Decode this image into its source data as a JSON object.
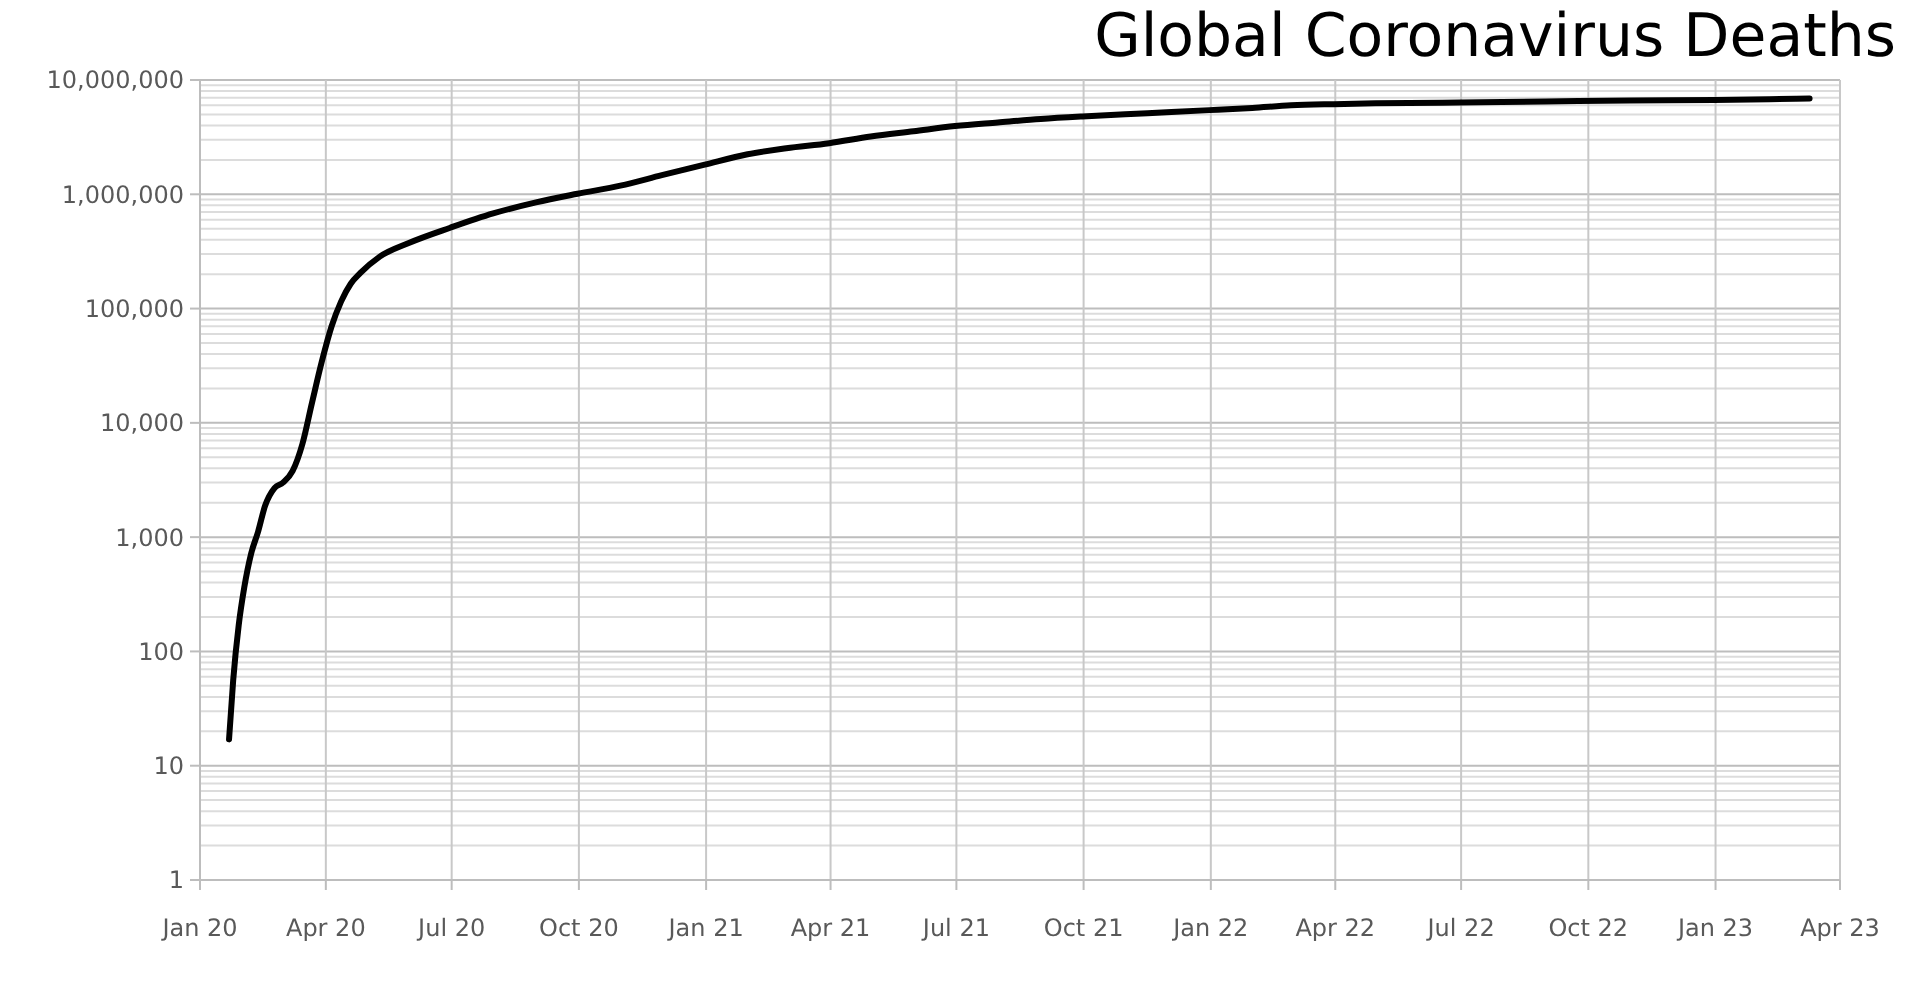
{
  "chart_data": {
    "type": "line",
    "title": "Global Coronavirus Deaths",
    "log": "y",
    "grid": true,
    "line_style": "solid",
    "xlim": [
      "2020-01-01",
      "2023-04-01"
    ],
    "xticks": [
      {
        "value": "2020-01-01",
        "label": "Jan 20"
      },
      {
        "value": "2020-04-01",
        "label": "Apr 20"
      },
      {
        "value": "2020-07-01",
        "label": "Jul 20"
      },
      {
        "value": "2020-10-01",
        "label": "Oct 20"
      },
      {
        "value": "2021-01-01",
        "label": "Jan 21"
      },
      {
        "value": "2021-04-01",
        "label": "Apr 21"
      },
      {
        "value": "2021-07-01",
        "label": "Jul 21"
      },
      {
        "value": "2021-10-01",
        "label": "Oct 21"
      },
      {
        "value": "2022-01-01",
        "label": "Jan 22"
      },
      {
        "value": "2022-04-01",
        "label": "Apr 22"
      },
      {
        "value": "2022-07-01",
        "label": "Jul 22"
      },
      {
        "value": "2022-10-01",
        "label": "Oct 22"
      },
      {
        "value": "2023-01-01",
        "label": "Jan 23"
      },
      {
        "value": "2023-04-01",
        "label": "Apr 23"
      }
    ],
    "ylim": [
      1,
      10000000
    ],
    "yticks": [
      1,
      10,
      100,
      {
        "value": 1000,
        "label": "1,000"
      },
      {
        "value": 10000,
        "label": "10,000"
      },
      {
        "value": 100000,
        "label": "100,000"
      },
      {
        "value": 1000000,
        "label": "1,000,000"
      },
      {
        "value": 10000000,
        "label": "10,000,000"
      }
    ],
    "x": [
      "2020-01-22",
      "2020-01-25",
      "2020-01-29",
      "2020-02-02",
      "2020-02-07",
      "2020-02-12",
      "2020-02-17",
      "2020-02-24",
      "2020-03-01",
      "2020-03-08",
      "2020-03-15",
      "2020-03-22",
      "2020-03-29",
      "2020-04-05",
      "2020-04-12",
      "2020-04-19",
      "2020-04-26",
      "2020-05-10",
      "2020-05-31",
      "2020-06-30",
      "2020-07-31",
      "2020-08-31",
      "2020-09-30",
      "2020-10-31",
      "2020-11-30",
      "2020-12-31",
      "2021-01-31",
      "2021-02-28",
      "2021-03-31",
      "2021-04-30",
      "2021-05-31",
      "2021-06-30",
      "2021-07-31",
      "2021-08-31",
      "2021-09-30",
      "2021-10-31",
      "2021-11-30",
      "2021-12-31",
      "2022-01-31",
      "2022-02-28",
      "2022-03-31",
      "2022-04-30",
      "2022-06-30",
      "2022-08-31",
      "2022-10-31",
      "2022-12-31",
      "2023-02-28",
      "2023-03-10"
    ],
    "series": [
      {
        "color": "#000000",
        "values": [
          17,
          56,
          170,
          362,
          720,
          1115,
          1870,
          2700,
          3000,
          3800,
          6500,
          15000,
          34000,
          69000,
          115000,
          165000,
          205000,
          285000,
          375000,
          510000,
          680000,
          850000,
          1010000,
          1190000,
          1470000,
          1820000,
          2240000,
          2530000,
          2800000,
          3200000,
          3560000,
          3950000,
          4250000,
          4560000,
          4800000,
          5020000,
          5220000,
          5450000,
          5700000,
          6000000,
          6150000,
          6250000,
          6350000,
          6500000,
          6600000,
          6700000,
          6850000,
          6880000
        ]
      }
    ]
  }
}
